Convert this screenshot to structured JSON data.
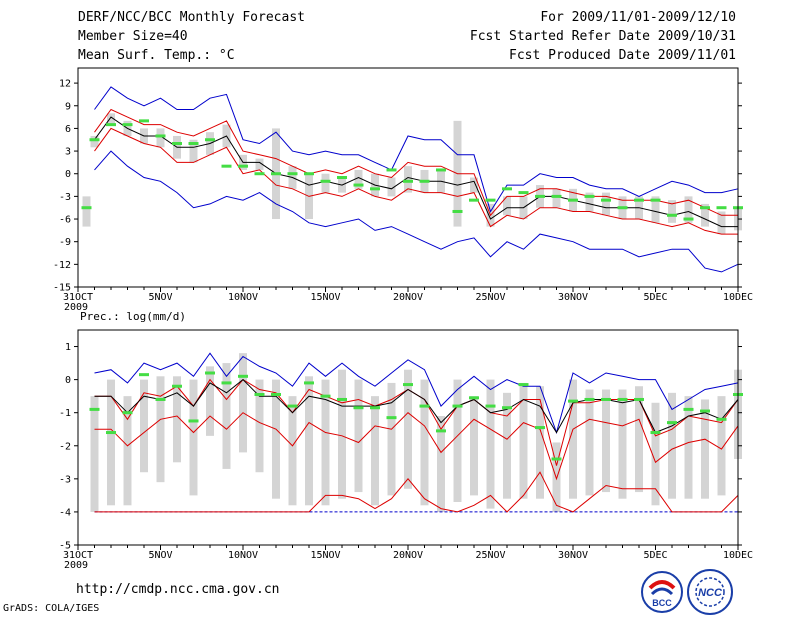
{
  "header": {
    "title": "DERF/NCC/BCC Monthly Forecast",
    "member_size": "Member Size=40",
    "variable": "Mean Surf. Temp.: °C",
    "period": "For 2009/11/01-2009/12/10",
    "refer_date": "Fcst Started Refer Date 2009/10/31",
    "produced_date": "Fcst Produced Date 2009/11/01"
  },
  "footer": {
    "url": "http://cmdp.ncc.cma.gov.cn",
    "credit": "GrADS: COLA/IGES",
    "logos": [
      "BCC",
      "NCC"
    ]
  },
  "colors": {
    "envelope": "#0000cc",
    "percentile": "#dd0000",
    "mean": "#000000",
    "observed": "#44dd44",
    "box": "#d4d4d4"
  },
  "chart_data": [
    {
      "type": "box-plume",
      "title": "Mean Surf. Temp.: °C",
      "x_tick_labels": [
        "31OCT",
        "5NOV",
        "10NOV",
        "15NOV",
        "20NOV",
        "25NOV",
        "30NOV",
        "5DEC",
        "10DEC"
      ],
      "x_tick_days": [
        0,
        5,
        10,
        15,
        20,
        25,
        30,
        35,
        40
      ],
      "x_year_label": "2009",
      "xlim": [
        0,
        40
      ],
      "ylim": [
        -15,
        14
      ],
      "y_ticks": [
        12,
        9,
        6,
        3,
        0,
        -3,
        -6,
        -9,
        -12,
        -15
      ],
      "days": [
        1,
        2,
        3,
        4,
        5,
        6,
        7,
        8,
        9,
        10,
        11,
        12,
        13,
        14,
        15,
        16,
        17,
        18,
        19,
        20,
        21,
        22,
        23,
        24,
        25,
        26,
        27,
        28,
        29,
        30,
        31,
        32,
        33,
        34,
        35,
        36,
        37,
        38,
        39,
        40
      ],
      "max": [
        8.5,
        11.5,
        10,
        9,
        10,
        8.5,
        8.5,
        10,
        10.5,
        4.5,
        4,
        5.5,
        3,
        2.5,
        3,
        2.5,
        2.5,
        1.5,
        0.5,
        5,
        4.5,
        4.5,
        2.5,
        2.5,
        -5,
        -1.5,
        -1.5,
        0,
        -0.5,
        -0.5,
        -1.5,
        -2,
        -2,
        -3,
        -2,
        -1,
        -1.5,
        -2.5,
        -2.5,
        -2
      ],
      "p90": [
        5.5,
        8.5,
        7.5,
        6.5,
        6.5,
        5.5,
        5,
        6,
        7,
        3,
        2.5,
        2,
        1,
        0,
        0.5,
        0,
        1,
        0,
        -0.5,
        1.5,
        1,
        1,
        0,
        0,
        -5.5,
        -3,
        -3,
        -2,
        -2,
        -2.5,
        -3,
        -3,
        -3.5,
        -3.5,
        -3.5,
        -4,
        -3.5,
        -4.5,
        -5.5,
        -5.5
      ],
      "mean": [
        4.5,
        7.5,
        6,
        5,
        5,
        3.5,
        3.5,
        4,
        5,
        1.5,
        1.5,
        0,
        -0.5,
        -1.5,
        -1,
        -1.5,
        -0.5,
        -1.5,
        -2,
        -0.5,
        -1,
        -1,
        -1.5,
        -1,
        -6,
        -4.5,
        -4.5,
        -3,
        -3,
        -3.5,
        -4,
        -4.5,
        -4.5,
        -4.5,
        -5,
        -5.5,
        -5,
        -6,
        -7,
        -7
      ],
      "p10": [
        3,
        6,
        5,
        4,
        3.5,
        1.5,
        1.5,
        2.5,
        3.5,
        0,
        0.5,
        -1.5,
        -2,
        -3,
        -2.5,
        -3,
        -2,
        -3,
        -3.5,
        -2,
        -2.5,
        -2.5,
        -3,
        -2.5,
        -7,
        -5.5,
        -6,
        -4.5,
        -4.5,
        -5,
        -5,
        -5.5,
        -6,
        -6,
        -6.5,
        -7,
        -6.5,
        -7.5,
        -8,
        -8
      ],
      "min": [
        0.5,
        3,
        1,
        -0.5,
        -1,
        -2.5,
        -4.5,
        -4,
        -3,
        -3.5,
        -2.5,
        -4,
        -5,
        -6.5,
        -7,
        -6.5,
        -6,
        -7.5,
        -7,
        -8,
        -9,
        -10,
        -9,
        -8.5,
        -11,
        -9,
        -10,
        -8,
        -8.5,
        -9,
        -10,
        -10,
        -10,
        -11,
        -10.5,
        -10,
        -10,
        -12.5,
        -13,
        -12
      ],
      "box_top": [
        5,
        8,
        7,
        6,
        6,
        5,
        4.5,
        5.5,
        6.5,
        2.5,
        2,
        6,
        1,
        0,
        0,
        -0.5,
        0.5,
        0,
        -0.5,
        1,
        0.5,
        0.5,
        7,
        -0.5,
        -4,
        -3,
        -3,
        -1.5,
        -2,
        -2,
        -2.5,
        -2.5,
        -3,
        -3,
        -3,
        -3.5,
        -3,
        -4,
        -5,
        -4.5
      ],
      "box_bottom": [
        3.5,
        6.5,
        5,
        4,
        3.5,
        2,
        1.5,
        2.5,
        3.5,
        0.5,
        0.5,
        -6,
        -2,
        -6,
        -2.5,
        -2.5,
        -2,
        -3,
        -3,
        -2.5,
        -2.5,
        -2.5,
        -7,
        -2.5,
        -7,
        -5.5,
        -6,
        -4.5,
        -4.5,
        -5,
        -5,
        -5.5,
        -6,
        -6,
        -6.5,
        -6.5,
        -6.5,
        -7,
        -8,
        -7.5
      ],
      "observed": [
        4.5,
        6.5,
        6.5,
        7,
        5,
        4,
        4,
        4.5,
        1,
        1,
        0,
        0,
        0,
        0,
        -1,
        -0.5,
        -1.5,
        -2,
        0.5,
        -1,
        -1,
        0.5,
        -5,
        -3.5,
        -3.5,
        -2,
        -2.5,
        -3,
        -3,
        -3.5,
        -3,
        -3.5,
        -4.5,
        -3.5,
        -3.5,
        -5.5,
        -6,
        -4.5,
        -4.5,
        -4.5
      ],
      "day0_box": [
        -7,
        -3
      ],
      "day0_observed": -4.5
    },
    {
      "type": "box-plume",
      "title": "Prec.: log(mm/d)",
      "x_tick_labels": [
        "31OCT",
        "5NOV",
        "10NOV",
        "15NOV",
        "20NOV",
        "25NOV",
        "30NOV",
        "5DEC",
        "10DEC"
      ],
      "x_tick_days": [
        0,
        5,
        10,
        15,
        20,
        25,
        30,
        35,
        40
      ],
      "x_year_label": "2009",
      "xlim": [
        0,
        40
      ],
      "ylim": [
        -5,
        1.5
      ],
      "y_ticks": [
        1,
        0,
        -1,
        -2,
        -3,
        -4,
        -5
      ],
      "days": [
        1,
        2,
        3,
        4,
        5,
        6,
        7,
        8,
        9,
        10,
        11,
        12,
        13,
        14,
        15,
        16,
        17,
        18,
        19,
        20,
        21,
        22,
        23,
        24,
        25,
        26,
        27,
        28,
        29,
        30,
        31,
        32,
        33,
        34,
        35,
        36,
        37,
        38,
        39,
        40
      ],
      "max": [
        0.2,
        0.3,
        -0.1,
        0.5,
        0.3,
        0.5,
        0.1,
        0.8,
        0.1,
        0.7,
        0.4,
        0.2,
        -0.2,
        0.5,
        0.1,
        0.5,
        0.1,
        -0.2,
        0.2,
        0.6,
        0.3,
        -0.8,
        -0.3,
        0.1,
        -0.3,
        0,
        -0.2,
        -0.2,
        -1.6,
        0.2,
        -0.1,
        0.2,
        0.1,
        0,
        0,
        -0.9,
        -0.6,
        -0.3,
        -0.2,
        -0.1
      ],
      "p90": [
        -0.5,
        -0.5,
        -1.2,
        -0.4,
        -0.5,
        -0.2,
        -0.8,
        0,
        -0.6,
        0,
        -0.3,
        -0.4,
        -1,
        -0.3,
        -0.5,
        -0.7,
        -0.6,
        -0.8,
        -0.6,
        -0.3,
        -0.6,
        -1.5,
        -0.8,
        -0.6,
        -1,
        -1.1,
        -0.6,
        -0.6,
        -2.6,
        -0.7,
        -0.7,
        -0.6,
        -0.6,
        -0.6,
        -1.7,
        -1.5,
        -1.1,
        -1.2,
        -1.3,
        -0.6
      ],
      "mean": [
        -0.5,
        -0.5,
        -1,
        -0.5,
        -0.6,
        -0.4,
        -0.8,
        -0.1,
        -0.4,
        0,
        -0.5,
        -0.5,
        -1,
        -0.5,
        -0.6,
        -0.8,
        -0.8,
        -0.8,
        -0.7,
        -0.3,
        -0.6,
        -1.3,
        -0.8,
        -0.6,
        -1,
        -0.9,
        -0.6,
        -0.8,
        -1.6,
        -0.7,
        -0.6,
        -0.6,
        -0.7,
        -0.6,
        -1.6,
        -1.4,
        -1.1,
        -1.0,
        -1.2,
        -0.6
      ],
      "p10": [
        -1.5,
        -1.5,
        -2,
        -1.6,
        -1.2,
        -1.1,
        -1.6,
        -1.1,
        -1.5,
        -1,
        -1.3,
        -1.5,
        -2,
        -1.3,
        -1.6,
        -1.7,
        -1.9,
        -1.4,
        -1.5,
        -1,
        -1.4,
        -2.2,
        -1.7,
        -1.2,
        -1.5,
        -1.8,
        -1.3,
        -1.5,
        -3,
        -1.5,
        -1.2,
        -1.3,
        -1.4,
        -1.2,
        -2.5,
        -2.1,
        -1.9,
        -1.8,
        -2.1,
        -1.4
      ],
      "lower_red": [
        -4,
        -4,
        -4,
        -4,
        -4,
        -4,
        -4,
        -4,
        -4,
        -4,
        -4,
        -4,
        -4,
        -4,
        -3.5,
        -3.5,
        -3.6,
        -3.9,
        -3.6,
        -3,
        -3.6,
        -3.9,
        -4,
        -3.8,
        -3.5,
        -4,
        -3.5,
        -2.8,
        -3.8,
        -4,
        -3.6,
        -3.2,
        -3.3,
        -3.3,
        -3.3,
        -4,
        -4,
        -4,
        -4,
        -3.5
      ],
      "blue_floor": -4,
      "box_top": [
        -0.5,
        0,
        -0.5,
        0,
        0.1,
        0.1,
        0,
        0.4,
        0.5,
        0.8,
        0,
        0,
        -0.5,
        0.1,
        0,
        0.3,
        0,
        -0.5,
        -0.1,
        0.3,
        0,
        -1.1,
        0,
        -0.5,
        0,
        -0.4,
        -0.1,
        -0.2,
        -1.9,
        0,
        -0.3,
        -0.3,
        -0.3,
        -0.2,
        -0.7,
        -0.4,
        -0.5,
        -0.6,
        -0.5,
        0.3
      ],
      "box_bottom": [
        -4,
        -3.8,
        -3.8,
        -2.8,
        -3.1,
        -2.5,
        -3.5,
        -1.7,
        -2.7,
        -2.2,
        -2.8,
        -3.6,
        -3.8,
        -3.8,
        -3.8,
        -3.6,
        -3.4,
        -3.8,
        -3.5,
        -3.3,
        -3.8,
        -4,
        -3.7,
        -3.5,
        -3.9,
        -3.6,
        -3.6,
        -3.6,
        -4,
        -3.6,
        -3.5,
        -3.4,
        -3.6,
        -3.4,
        -3.8,
        -3.6,
        -3.6,
        -3.6,
        -3.5,
        -2.4
      ],
      "observed": [
        -0.9,
        -1.6,
        -1,
        0.15,
        -0.6,
        -0.2,
        -1.25,
        0.2,
        -0.1,
        0.1,
        -0.45,
        -0.45,
        -0.8,
        -0.1,
        -0.5,
        -0.6,
        -0.85,
        -0.85,
        -1.15,
        -0.15,
        -0.8,
        -1.55,
        -0.8,
        -0.55,
        -0.8,
        -0.85,
        -0.15,
        -1.45,
        -2.4,
        -0.65,
        -0.6,
        -0.6,
        -0.6,
        -0.6,
        -1.6,
        -1.3,
        -0.9,
        -0.95,
        -1.2,
        -0.45
      ]
    }
  ]
}
